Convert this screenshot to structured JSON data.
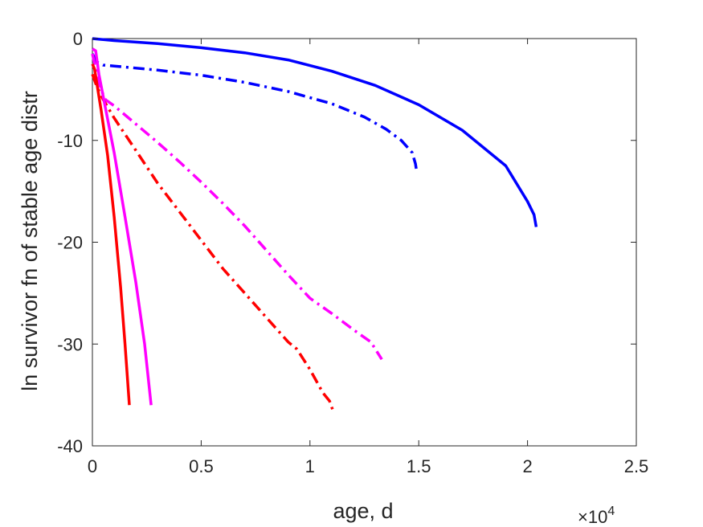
{
  "chart_data": {
    "type": "line",
    "xlabel": "age, d",
    "ylabel": "ln survivor fn of stable age distr",
    "x_exponent_label": "×10",
    "x_exponent_power": "4",
    "xlim": [
      0,
      25000
    ],
    "ylim": [
      -40,
      0
    ],
    "xticks": [
      0,
      5000,
      10000,
      15000,
      20000,
      25000
    ],
    "xtick_labels": [
      "0",
      "0.5",
      "1",
      "1.5",
      "2",
      "2.5"
    ],
    "yticks": [
      0,
      -10,
      -20,
      -30,
      -40
    ],
    "ytick_labels": [
      "0",
      "-10",
      "-20",
      "-30",
      "-40"
    ],
    "grid": false,
    "series": [
      {
        "color": "#0000ff",
        "style": "solid",
        "points": [
          [
            0,
            0
          ],
          [
            1000,
            -0.2
          ],
          [
            3000,
            -0.5
          ],
          [
            5000,
            -0.9
          ],
          [
            7000,
            -1.4
          ],
          [
            9000,
            -2.1
          ],
          [
            11000,
            -3.2
          ],
          [
            13000,
            -4.6
          ],
          [
            15000,
            -6.5
          ],
          [
            17000,
            -9.0
          ],
          [
            19000,
            -12.5
          ],
          [
            20000,
            -16.0
          ],
          [
            20300,
            -17.3
          ],
          [
            20400,
            -18.5
          ]
        ]
      },
      {
        "color": "#0000ff",
        "style": "dashdot",
        "points": [
          [
            0,
            -1.5
          ],
          [
            200,
            -2.3
          ],
          [
            500,
            -2.6
          ],
          [
            1000,
            -2.7
          ],
          [
            3000,
            -3.1
          ],
          [
            5000,
            -3.6
          ],
          [
            7000,
            -4.3
          ],
          [
            9000,
            -5.2
          ],
          [
            11000,
            -6.4
          ],
          [
            12500,
            -7.7
          ],
          [
            13500,
            -8.9
          ],
          [
            14200,
            -10.0
          ],
          [
            14700,
            -11.2
          ],
          [
            14850,
            -12.3
          ],
          [
            14900,
            -13.0
          ]
        ]
      },
      {
        "color": "#ff00ff",
        "style": "dashdot",
        "points": [
          [
            0,
            -1.5
          ],
          [
            150,
            -3.0
          ],
          [
            400,
            -5.0
          ],
          [
            600,
            -6.0
          ],
          [
            1000,
            -6.6
          ],
          [
            2000,
            -8.4
          ],
          [
            3000,
            -10.2
          ],
          [
            4000,
            -12.1
          ],
          [
            5000,
            -14.1
          ],
          [
            6000,
            -16.2
          ],
          [
            7000,
            -18.4
          ],
          [
            8000,
            -20.8
          ],
          [
            9000,
            -23.2
          ],
          [
            10000,
            -25.5
          ],
          [
            11000,
            -27.0
          ],
          [
            12000,
            -28.6
          ],
          [
            12800,
            -29.8
          ],
          [
            13300,
            -31.5
          ]
        ]
      },
      {
        "color": "#ff0000",
        "style": "dashdot",
        "points": [
          [
            0,
            -3.5
          ],
          [
            200,
            -4.7
          ],
          [
            500,
            -6.0
          ],
          [
            1000,
            -7.8
          ],
          [
            2000,
            -11.0
          ],
          [
            3000,
            -14.2
          ],
          [
            4000,
            -17.0
          ],
          [
            5000,
            -19.8
          ],
          [
            6000,
            -22.6
          ],
          [
            7000,
            -25.0
          ],
          [
            8000,
            -27.4
          ],
          [
            9000,
            -29.8
          ],
          [
            9400,
            -30.5
          ],
          [
            10000,
            -32.5
          ],
          [
            10600,
            -34.8
          ],
          [
            10900,
            -35.6
          ],
          [
            11100,
            -36.8
          ]
        ]
      },
      {
        "color": "#ff00ff",
        "style": "solid",
        "points": [
          [
            0,
            -1.0
          ],
          [
            150,
            -1.2
          ],
          [
            300,
            -3.5
          ],
          [
            600,
            -6.8
          ],
          [
            1000,
            -11.2
          ],
          [
            1500,
            -17.5
          ],
          [
            2000,
            -24.0
          ],
          [
            2400,
            -30.0
          ],
          [
            2700,
            -36.0
          ]
        ]
      },
      {
        "color": "#ff0000",
        "style": "solid",
        "points": [
          [
            0,
            -2.5
          ],
          [
            100,
            -3.0
          ],
          [
            400,
            -7.0
          ],
          [
            700,
            -11.5
          ],
          [
            1000,
            -17.5
          ],
          [
            1300,
            -24.5
          ],
          [
            1500,
            -30.0
          ],
          [
            1700,
            -36.0
          ]
        ]
      }
    ]
  }
}
